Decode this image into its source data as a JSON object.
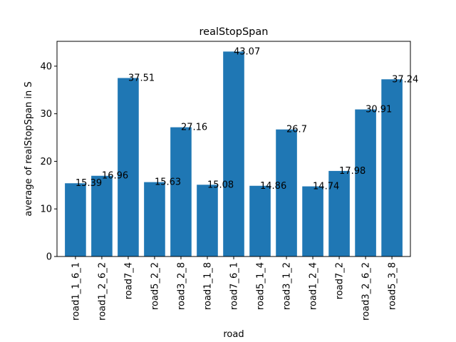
{
  "chart_data": {
    "type": "bar",
    "title": "realStopSpan",
    "xlabel": "road",
    "ylabel": "average of realStopSpan in S",
    "categories": [
      "road1_1_6_1",
      "road1_2_6_2",
      "road7_4",
      "road5_2_2",
      "road3_2_8",
      "road1_1_8",
      "road7_6_1",
      "road5_1_4",
      "road3_1_2",
      "road1_2_4",
      "road7_2",
      "road3_2_6_2",
      "road5_3_8"
    ],
    "values": [
      15.39,
      16.96,
      37.51,
      15.63,
      27.16,
      15.08,
      43.07,
      14.86,
      26.7,
      14.74,
      17.98,
      30.91,
      37.24
    ],
    "data_labels": [
      "15.39",
      "16.96",
      "37.51",
      "15.63",
      "27.16",
      "15.08",
      "43.07",
      "14.86",
      "26.7",
      "14.74",
      "17.98",
      "30.91",
      "37.24"
    ],
    "ylim": [
      0,
      45.22
    ],
    "yticks": [
      0,
      10,
      20,
      30,
      40
    ],
    "grid": false,
    "legend": "none",
    "bar_color": "#1f77b4"
  }
}
